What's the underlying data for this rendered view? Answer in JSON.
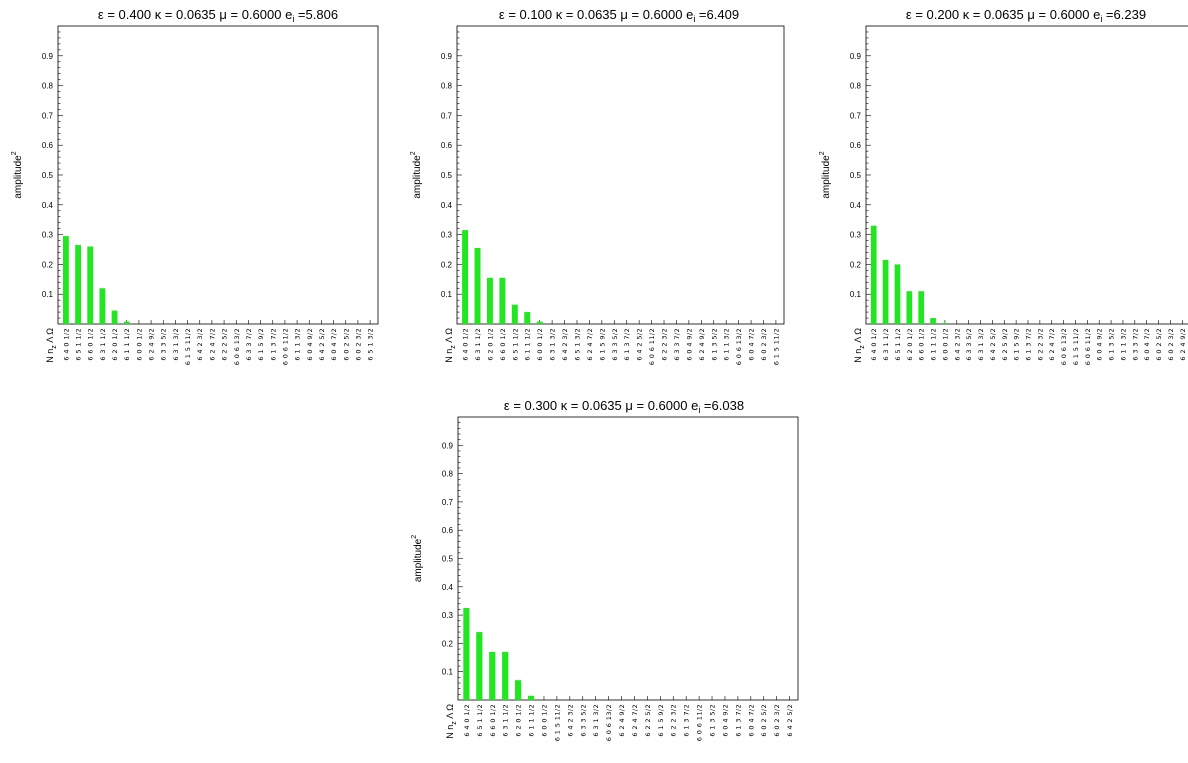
{
  "chart_data": [
    {
      "type": "bar",
      "title_parts": {
        "eps": "ε = 0.400",
        "kappa": "κ = 0.0635",
        "mu": "μ = 0.6000",
        "ei": "e",
        "ei_sub": "i",
        "ei_val": " =5.806"
      },
      "ylabel": "amplitude",
      "ylabel_sup": "2",
      "xheader": {
        "main": "N n",
        "sub": "z",
        "rest": " Λ Ω"
      },
      "yticks": [
        "0.1",
        "0.2",
        "0.3",
        "0.4",
        "0.5",
        "0.6",
        "0.7",
        "0.8",
        "0.9"
      ],
      "ylim": [
        0,
        1
      ],
      "categories": [
        "6 4 0 1/2",
        "6 5 1 1/2",
        "6 6 0 1/2",
        "6 3 1 1/2",
        "6 2 0 1/2",
        "6 1 1 1/2",
        "6 0 0 1/2",
        "6 2 4 9/2",
        "6 3 3 5/2",
        "6 3 1 3/2",
        "6 1 5 11/2",
        "6 4 2 3/2",
        "6 2 4 7/2",
        "6 2 2 5/2",
        "6 0 6 13/2",
        "6 3 3 7/2",
        "6 1 5 9/2",
        "6 1 3 7/2",
        "6 0 6 11/2",
        "6 1 1 3/2",
        "6 0 4 9/2",
        "6 4 2 5/2",
        "6 0 4 7/2",
        "6 0 2 5/2",
        "6 0 2 3/2",
        "6 5 1 3/2"
      ],
      "values": [
        0.295,
        0.265,
        0.26,
        0.12,
        0.045,
        0.008,
        0,
        0,
        0,
        0,
        0,
        0,
        0,
        0,
        0,
        0,
        0,
        0,
        0,
        0,
        0,
        0,
        0,
        0,
        0,
        0
      ]
    },
    {
      "type": "bar",
      "title_parts": {
        "eps": "ε = 0.100",
        "kappa": "κ = 0.0635",
        "mu": "μ = 0.6000",
        "ei": "e",
        "ei_sub": "i",
        "ei_val": " =6.409"
      },
      "ylabel": "amplitude",
      "ylabel_sup": "2",
      "xheader": {
        "main": "N n",
        "sub": "z",
        "rest": " Λ Ω"
      },
      "yticks": [
        "0.1",
        "0.2",
        "0.3",
        "0.4",
        "0.5",
        "0.6",
        "0.7",
        "0.8",
        "0.9"
      ],
      "ylim": [
        0,
        1
      ],
      "categories": [
        "6 4 0 1/2",
        "6 3 1 1/2",
        "6 2 0 1/2",
        "6 6 0 1/2",
        "6 5 1 1/2",
        "6 1 1 1/2",
        "6 0 0 1/2",
        "6 3 1 3/2",
        "6 4 2 3/2",
        "6 5 1 3/2",
        "6 2 4 7/2",
        "6 1 5 9/2",
        "6 3 3 5/2",
        "6 1 3 7/2",
        "6 4 2 5/2",
        "6 0 6 11/2",
        "6 2 2 3/2",
        "6 3 3 7/2",
        "6 0 4 9/2",
        "6 2 4 9/2",
        "6 1 3 5/2",
        "6 1 1 3/2",
        "6 0 6 13/2",
        "6 0 4 7/2",
        "6 0 2 3/2",
        "6 1 5 11/2"
      ],
      "values": [
        0.315,
        0.255,
        0.155,
        0.155,
        0.065,
        0.04,
        0.008,
        0,
        0,
        0,
        0,
        0,
        0,
        0,
        0,
        0,
        0,
        0,
        0,
        0,
        0,
        0,
        0,
        0,
        0,
        0
      ]
    },
    {
      "type": "bar",
      "title_parts": {
        "eps": "ε = 0.200",
        "kappa": "κ = 0.0635",
        "mu": "μ = 0.6000",
        "ei": "e",
        "ei_sub": "i",
        "ei_val": " =6.239"
      },
      "ylabel": "amplitude",
      "ylabel_sup": "2",
      "xheader": {
        "main": "N n",
        "sub": "z",
        "rest": " Λ Ω"
      },
      "yticks": [
        "0.1",
        "0.2",
        "0.3",
        "0.4",
        "0.5",
        "0.6",
        "0.7",
        "0.8",
        "0.9"
      ],
      "ylim": [
        0,
        1
      ],
      "categories": [
        "6 4 0 1/2",
        "6 3 1 1/2",
        "6 5 1 1/2",
        "6 2 0 1/2",
        "6 6 0 1/2",
        "6 1 1 1/2",
        "6 0 0 1/2",
        "6 4 2 3/2",
        "6 3 3 5/2",
        "6 3 1 3/2",
        "6 4 2 5/2",
        "6 2 5 9/2",
        "6 1 5 9/2",
        "6 1 3 7/2",
        "6 2 2 3/2",
        "6 2 4 7/2",
        "6 0 6 13/2",
        "6 1 5 11/2",
        "6 0 6 11/2",
        "6 0 4 9/2",
        "6 1 3 5/2",
        "6 1 1 3/2",
        "6 3 3 7/2",
        "6 0 4 7/2",
        "6 0 2 5/2",
        "6 0 2 3/2",
        "6 2 4 9/2"
      ],
      "values": [
        0.33,
        0.215,
        0.2,
        0.11,
        0.11,
        0.02,
        0.003,
        0,
        0,
        0,
        0,
        0,
        0,
        0,
        0,
        0,
        0,
        0,
        0,
        0,
        0,
        0,
        0,
        0,
        0,
        0,
        0
      ]
    },
    {
      "type": "bar",
      "title_parts": {
        "eps": "ε = 0.300",
        "kappa": "κ = 0.0635",
        "mu": "μ = 0.6000",
        "ei": "e",
        "ei_sub": "i",
        "ei_val": " =6.038"
      },
      "ylabel": "amplitude",
      "ylabel_sup": "2",
      "xheader": {
        "main": "N n",
        "sub": "z",
        "rest": " Λ Ω"
      },
      "yticks": [
        "0.1",
        "0.2",
        "0.3",
        "0.4",
        "0.5",
        "0.6",
        "0.7",
        "0.8",
        "0.9"
      ],
      "ylim": [
        0,
        1
      ],
      "categories": [
        "6 4 0 1/2",
        "6 5 1 1/2",
        "6 6 0 1/2",
        "6 3 1 1/2",
        "6 2 0 1/2",
        "6 1 1 1/2",
        "6 0 0 1/2",
        "6 1 5 11/2",
        "6 4 2 3/2",
        "6 3 3 5/2",
        "6 3 1 3/2",
        "6 0 6 13/2",
        "6 2 4 9/2",
        "6 2 4 7/2",
        "6 2 2 5/2",
        "6 1 5 9/2",
        "6 2 2 3/2",
        "6 1 3 7/2",
        "6 0 6 11/2",
        "6 1 3 5/2",
        "6 0 4 9/2",
        "6 1 3 7/2",
        "6 0 4 7/2",
        "6 0 2 5/2",
        "6 0 2 3/2",
        "6 4 2 5/2"
      ],
      "values": [
        0.325,
        0.24,
        0.17,
        0.17,
        0.07,
        0.015,
        0,
        0,
        0,
        0,
        0,
        0,
        0,
        0,
        0,
        0,
        0,
        0,
        0,
        0,
        0,
        0,
        0,
        0,
        0,
        0
      ]
    }
  ]
}
